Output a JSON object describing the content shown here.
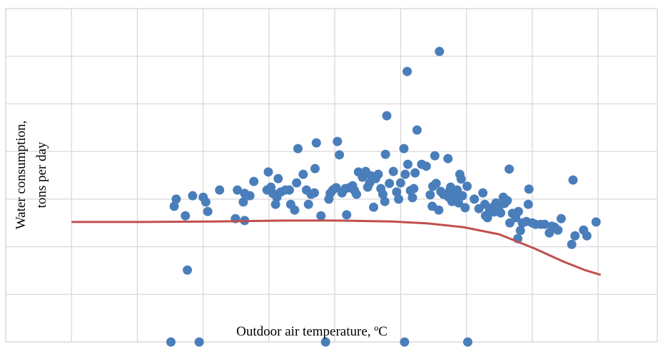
{
  "chart_data": {
    "type": "scatter",
    "x_label": "Outdoor air temperature, ºC",
    "y_label": [
      "Water consumption,",
      "tons per day"
    ],
    "xlim": [
      0,
      9.9
    ],
    "xticks": [
      0,
      1,
      2,
      3,
      4,
      5,
      6,
      7,
      8,
      9
    ],
    "ylim": [
      0,
      7
    ],
    "yticks": [
      0,
      1,
      2,
      3,
      4,
      5,
      6,
      7
    ],
    "grid": true,
    "series": [
      {
        "type": "scatter",
        "color": "#4a7ebb",
        "x": [
          2.51,
          2.94,
          4.86,
          6.06,
          7.02,
          2.76,
          2.56,
          2.59,
          2.73,
          2.84,
          3.0,
          3.04,
          3.07,
          3.25,
          3.49,
          3.52,
          3.63,
          3.61,
          3.63,
          3.71,
          3.77,
          3.99,
          3.97,
          4.03,
          4.06,
          4.1,
          4.12,
          4.14,
          4.18,
          4.25,
          4.31,
          4.33,
          4.39,
          4.42,
          4.44,
          4.52,
          4.57,
          4.6,
          4.64,
          4.69,
          4.7,
          4.72,
          4.79,
          4.91,
          4.93,
          4.97,
          5.02,
          5.04,
          5.07,
          5.11,
          5.16,
          5.18,
          5.22,
          5.27,
          5.3,
          5.33,
          5.36,
          5.42,
          5.47,
          5.5,
          5.53,
          5.55,
          5.59,
          5.62,
          5.66,
          5.7,
          5.73,
          5.76,
          5.77,
          5.79,
          5.83,
          5.89,
          5.94,
          5.97,
          6.0,
          6.05,
          6.07,
          6.1,
          6.11,
          6.15,
          6.18,
          6.2,
          6.22,
          6.25,
          6.32,
          6.39,
          6.45,
          6.48,
          6.49,
          6.52,
          6.54,
          6.58,
          6.59,
          6.61,
          6.65,
          6.72,
          6.73,
          6.75,
          6.76,
          6.78,
          6.8,
          6.83,
          6.86,
          6.88,
          6.9,
          6.92,
          6.94,
          6.98,
          7.01,
          7.12,
          7.19,
          7.25,
          7.28,
          7.29,
          7.32,
          7.35,
          7.4,
          7.42,
          7.45,
          7.49,
          7.52,
          7.56,
          7.58,
          7.62,
          7.65,
          7.66,
          7.7,
          7.75,
          7.78,
          7.79,
          7.82,
          7.85,
          7.91,
          7.94,
          7.95,
          8.0,
          8.05,
          8.13,
          8.19,
          8.26,
          8.3,
          8.34,
          8.39,
          8.44,
          8.6,
          8.62,
          8.65,
          8.78,
          8.83,
          8.97
        ],
        "values": [
          0,
          0,
          0,
          0,
          0,
          1.51,
          2.85,
          3.0,
          2.65,
          3.07,
          3.04,
          2.94,
          2.74,
          3.19,
          2.59,
          3.19,
          2.55,
          2.94,
          3.12,
          3.07,
          3.37,
          3.57,
          3.19,
          3.25,
          3.12,
          2.89,
          3.04,
          3.43,
          3.15,
          3.19,
          3.19,
          2.89,
          2.77,
          3.34,
          4.06,
          3.52,
          3.19,
          2.89,
          3.1,
          3.13,
          3.64,
          4.18,
          2.65,
          3.0,
          3.12,
          3.19,
          3.24,
          4.21,
          3.93,
          3.13,
          3.22,
          2.67,
          3.24,
          3.28,
          3.18,
          3.1,
          3.57,
          3.46,
          3.58,
          3.25,
          3.34,
          3.49,
          2.83,
          3.43,
          3.52,
          3.22,
          3.1,
          2.95,
          3.94,
          4.75,
          3.33,
          3.58,
          3.15,
          3.0,
          3.34,
          4.06,
          3.52,
          5.68,
          3.73,
          3.18,
          3.03,
          3.22,
          3.55,
          4.45,
          3.73,
          3.69,
          3.09,
          2.85,
          3.27,
          3.91,
          3.33,
          2.77,
          6.1,
          3.16,
          3.1,
          3.85,
          3.04,
          3.19,
          3.25,
          2.95,
          3.18,
          3.01,
          3.19,
          2.92,
          3.52,
          3.42,
          3.07,
          2.82,
          3.27,
          3.0,
          2.8,
          3.13,
          2.89,
          2.65,
          2.61,
          2.74,
          2.83,
          2.73,
          2.92,
          2.83,
          2.71,
          3.04,
          2.91,
          2.97,
          3.63,
          2.5,
          2.7,
          2.61,
          2.17,
          2.74,
          2.34,
          2.5,
          2.53,
          2.89,
          3.21,
          2.5,
          2.47,
          2.47,
          2.47,
          2.29,
          2.43,
          2.41,
          2.35,
          2.59,
          2.05,
          3.4,
          2.23,
          2.35,
          2.23,
          2.52
        ]
      },
      {
        "type": "line",
        "color": "#c0504d",
        "x": [
          1.0,
          2.08,
          3.16,
          4.25,
          5.01,
          5.87,
          6.41,
          6.96,
          7.5,
          8.04,
          8.47,
          8.8,
          9.04
        ],
        "values": [
          2.52,
          2.52,
          2.53,
          2.55,
          2.55,
          2.53,
          2.49,
          2.41,
          2.26,
          1.96,
          1.69,
          1.51,
          1.41
        ]
      }
    ]
  }
}
